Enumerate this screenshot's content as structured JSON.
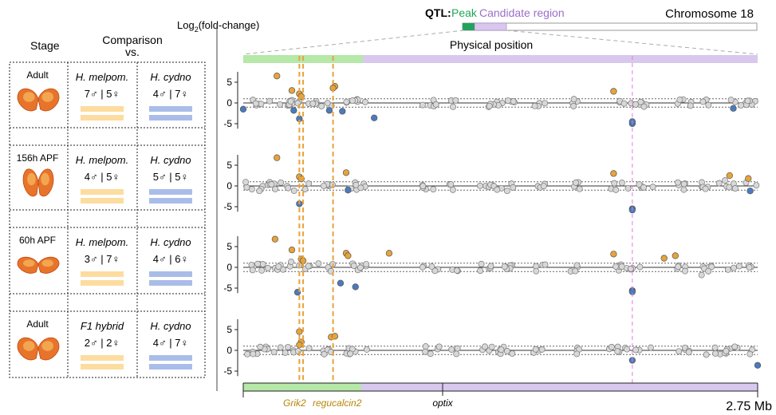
{
  "left_panel": {
    "stage_header": "Stage",
    "comparison_header": "Comparison",
    "vs_header": "vs.",
    "rows": [
      {
        "stage": "Adult",
        "left_species": "H. melpom.",
        "left_counts": "7♂ | 5♀",
        "right_species": "H. cydno",
        "right_counts": "4♂ | 7♀"
      },
      {
        "stage": "156h APF",
        "left_species": "H. melpom.",
        "left_counts": "4♂ | 5♀",
        "right_species": "H. cydno",
        "right_counts": "5♂ | 5♀"
      },
      {
        "stage": "60h APF",
        "left_species": "H. melpom.",
        "left_counts": "3♂ | 7♀",
        "right_species": "H. cydno",
        "right_counts": "4♂ | 6♀"
      },
      {
        "stage": "Adult",
        "left_species": "F1 hybrid",
        "left_counts": "2♂ | 2♀",
        "right_species": "H. cydno",
        "right_counts": "4♂ | 7♀"
      }
    ]
  },
  "header": {
    "qtl_label": "QTL:",
    "peak_label": "Peak",
    "candidate_label": "Candidate region",
    "chromosome_label": "Chromosome 18",
    "ylabel_prefix": "Log",
    "ylabel_sub": "2",
    "ylabel_suffix": "(fold-change)",
    "physical_position": "Physical position"
  },
  "colors": {
    "peak": "#22a35a",
    "candidate": "#9b6fc9",
    "peak_fill": "#b6e8a8",
    "candidate_fill": "#d8c8ee",
    "up": "#e8a33a",
    "down": "#4a7bbf",
    "neutral": "#d8d8d8",
    "grik2_line": "#e8a33a",
    "optix_line": "#e07be0",
    "left_bar": "#fddca0",
    "right_bar": "#a9bde8",
    "gene_label": "#b8860b"
  },
  "gene_labels": {
    "grik2": "Grik2",
    "regucalcin2": "regucalcin2",
    "optix": "optix"
  },
  "scale_label": "2.75 Mb",
  "chart_data": {
    "type": "scatter",
    "xlabel": "Physical position",
    "ylabel": "Log2(fold-change)",
    "x_range_mb": [
      0,
      2.75
    ],
    "ylim": [
      -6,
      8
    ],
    "yticks": [
      -5,
      0,
      5
    ],
    "threshold": 1,
    "peak_region_mb": [
      0,
      0.65
    ],
    "candidate_region_mb": [
      0.65,
      2.75
    ],
    "gene_lines_mb": [
      0.3,
      0.32,
      0.48,
      2.08
    ],
    "panels": [
      {
        "stage": "Adult",
        "highlighted": [
          {
            "x": 0.18,
            "y": 6.5,
            "type": "up"
          },
          {
            "x": 0.26,
            "y": 3.0,
            "type": "up"
          },
          {
            "x": 0.3,
            "y": 2.2,
            "type": "up"
          },
          {
            "x": 0.31,
            "y": 1.6,
            "type": "up"
          },
          {
            "x": 0.49,
            "y": 4.0,
            "type": "up"
          },
          {
            "x": 0.48,
            "y": 3.6,
            "type": "up"
          },
          {
            "x": 1.98,
            "y": 2.8,
            "type": "up"
          },
          {
            "x": 0.0,
            "y": -1.5,
            "type": "down"
          },
          {
            "x": 0.27,
            "y": -1.8,
            "type": "down"
          },
          {
            "x": 0.3,
            "y": -3.8,
            "type": "down"
          },
          {
            "x": 0.46,
            "y": -1.8,
            "type": "down"
          },
          {
            "x": 0.53,
            "y": -2.0,
            "type": "down"
          },
          {
            "x": 0.7,
            "y": -3.6,
            "type": "down"
          },
          {
            "x": 2.08,
            "y": -5.0,
            "type": "down"
          },
          {
            "x": 2.08,
            "y": -4.5,
            "type": "down"
          },
          {
            "x": 2.62,
            "y": -1.3,
            "type": "down"
          }
        ]
      },
      {
        "stage": "156h APF",
        "highlighted": [
          {
            "x": 0.18,
            "y": 6.8,
            "type": "up"
          },
          {
            "x": 0.3,
            "y": 2.2,
            "type": "up"
          },
          {
            "x": 0.31,
            "y": 1.7,
            "type": "up"
          },
          {
            "x": 0.55,
            "y": 3.2,
            "type": "up"
          },
          {
            "x": 1.98,
            "y": 3.0,
            "type": "up"
          },
          {
            "x": 2.6,
            "y": 2.5,
            "type": "up"
          },
          {
            "x": 2.7,
            "y": 1.8,
            "type": "up"
          },
          {
            "x": 0.3,
            "y": -4.3,
            "type": "down"
          },
          {
            "x": 0.56,
            "y": -1.0,
            "type": "down"
          },
          {
            "x": 2.08,
            "y": -5.5,
            "type": "down"
          },
          {
            "x": 2.08,
            "y": -5.8,
            "type": "down"
          },
          {
            "x": 2.71,
            "y": -1.2,
            "type": "down"
          }
        ]
      },
      {
        "stage": "60h APF",
        "highlighted": [
          {
            "x": 0.17,
            "y": 6.8,
            "type": "up"
          },
          {
            "x": 0.26,
            "y": 4.2,
            "type": "up"
          },
          {
            "x": 0.31,
            "y": 2.0,
            "type": "up"
          },
          {
            "x": 0.32,
            "y": 1.6,
            "type": "up"
          },
          {
            "x": 0.55,
            "y": 3.4,
            "type": "up"
          },
          {
            "x": 0.56,
            "y": 2.8,
            "type": "up"
          },
          {
            "x": 0.78,
            "y": 3.4,
            "type": "up"
          },
          {
            "x": 1.98,
            "y": 3.2,
            "type": "up"
          },
          {
            "x": 2.25,
            "y": 2.2,
            "type": "up"
          },
          {
            "x": 2.31,
            "y": 2.8,
            "type": "up"
          },
          {
            "x": 0.29,
            "y": -6.0,
            "type": "down"
          },
          {
            "x": 0.52,
            "y": -3.8,
            "type": "down"
          },
          {
            "x": 0.6,
            "y": -4.7,
            "type": "down"
          },
          {
            "x": 2.08,
            "y": -5.6,
            "type": "down"
          },
          {
            "x": 2.08,
            "y": -5.9,
            "type": "down"
          }
        ]
      },
      {
        "stage": "Adult",
        "highlighted": [
          {
            "x": 0.3,
            "y": 4.5,
            "type": "up"
          },
          {
            "x": 0.31,
            "y": 2.0,
            "type": "up"
          },
          {
            "x": 0.3,
            "y": 1.3,
            "type": "up"
          },
          {
            "x": 0.47,
            "y": 3.2,
            "type": "up"
          },
          {
            "x": 0.49,
            "y": 3.4,
            "type": "up"
          },
          {
            "x": 2.08,
            "y": -2.4,
            "type": "down"
          },
          {
            "x": 2.75,
            "y": -3.6,
            "type": "down"
          }
        ]
      }
    ]
  }
}
